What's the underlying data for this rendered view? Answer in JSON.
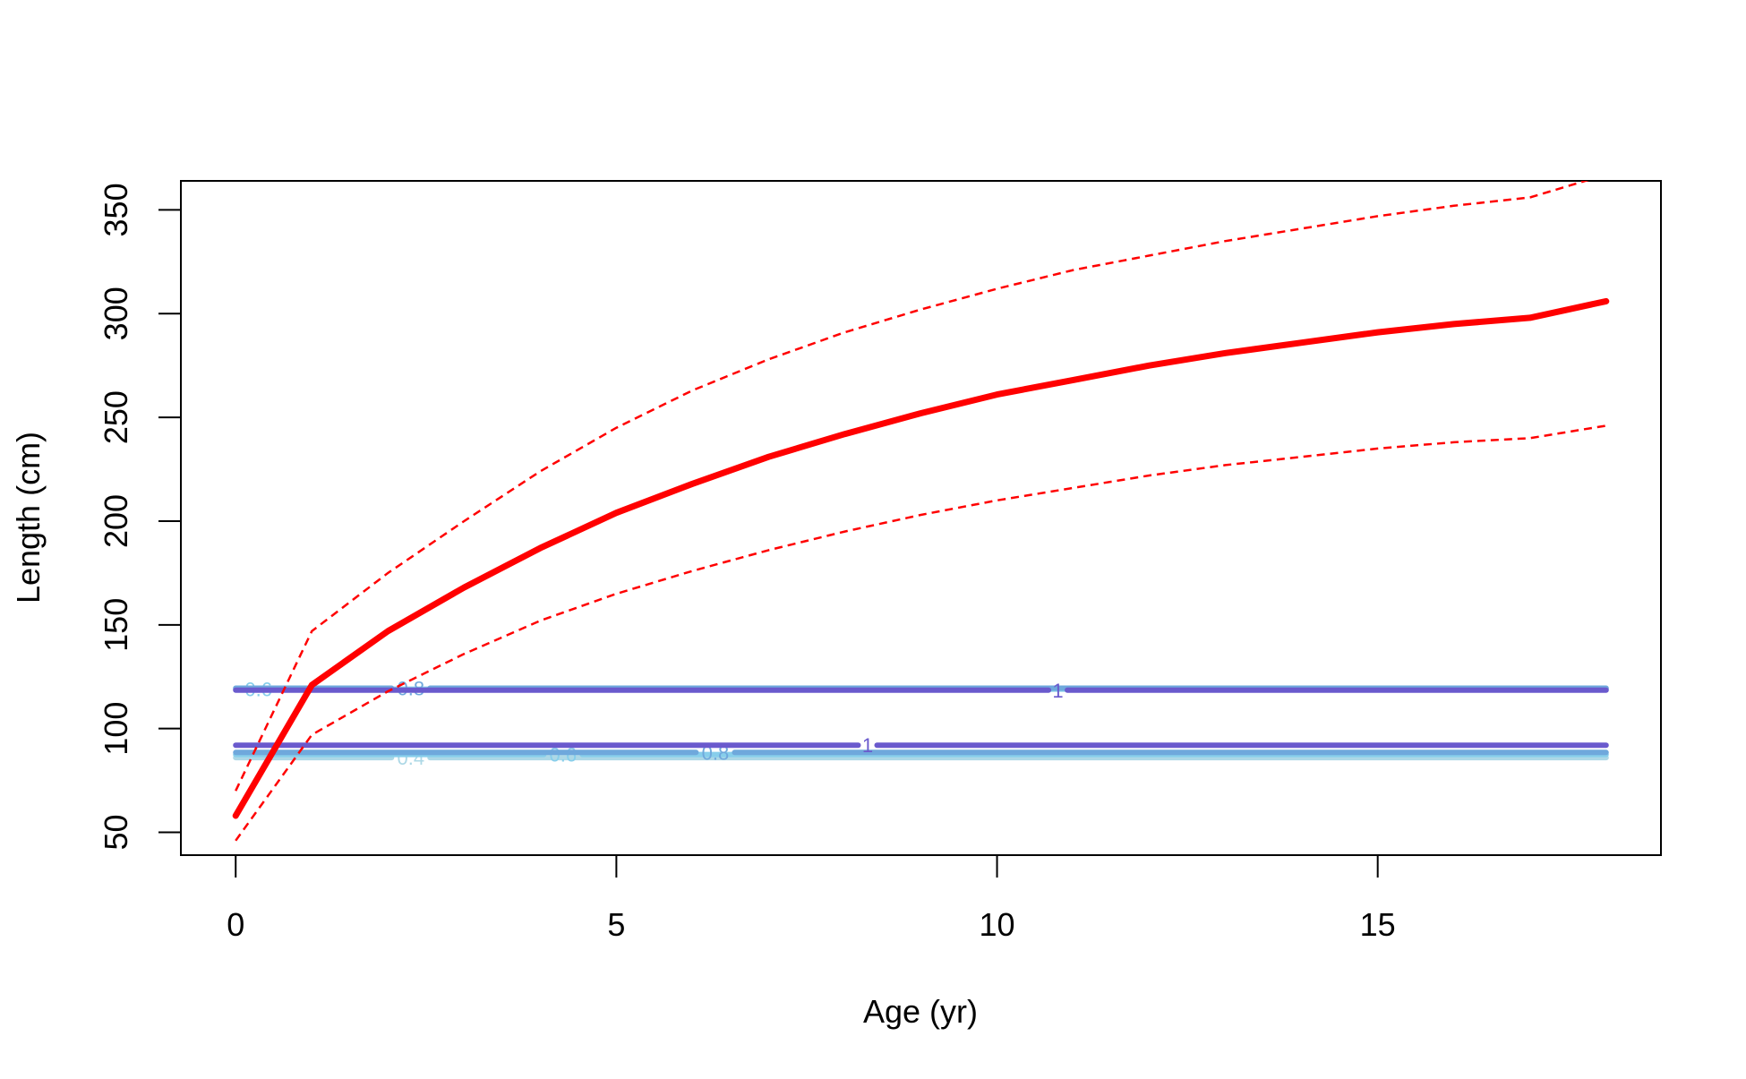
{
  "chart_data": {
    "type": "line",
    "title": "",
    "xlabel": "Age (yr)",
    "ylabel": "Length (cm)",
    "xlim": [
      -0.72,
      18.72
    ],
    "ylim": [
      39,
      364
    ],
    "x_ticks": [
      0,
      5,
      10,
      15
    ],
    "y_ticks": [
      50,
      100,
      150,
      200,
      250,
      300,
      350
    ],
    "grid": false,
    "legend": "none",
    "growth_curve": {
      "color": "#ff0000",
      "x": [
        0,
        1,
        2,
        3,
        4,
        5,
        6,
        7,
        8,
        9,
        10,
        11,
        12,
        13,
        14,
        15,
        16,
        17,
        18
      ],
      "mean": [
        58,
        121,
        147,
        168,
        187,
        204,
        218,
        231,
        242,
        252,
        261,
        268,
        275,
        281,
        286,
        291,
        295,
        298,
        306
      ],
      "upper": [
        70,
        147,
        175,
        200,
        224,
        245,
        263,
        278,
        291,
        302,
        312,
        321,
        328,
        335,
        341,
        347,
        352,
        356,
        367
      ],
      "lower": [
        46,
        97,
        118,
        136,
        152,
        165,
        176,
        186,
        195,
        203,
        210,
        216,
        222,
        227,
        231,
        235,
        238,
        240,
        246
      ]
    },
    "contours": [
      {
        "label": "0.6",
        "color": "#87ceeb",
        "x_range": [
          0,
          18
        ],
        "y": 119,
        "label_x": 0.3
      },
      {
        "label": "0.8",
        "color": "#6fa8dc",
        "x_range": [
          0,
          18
        ],
        "y": 119.5,
        "label_x": 2.3
      },
      {
        "label": "1",
        "color": "#6a5acd",
        "x_range": [
          0,
          18
        ],
        "y": 118.5,
        "label_x": 10.8
      },
      {
        "label": "0.4",
        "color": "#add8e6",
        "x_range": [
          0,
          18
        ],
        "y": 86,
        "label_x": 2.3
      },
      {
        "label": "0.6",
        "color": "#87ceeb",
        "x_range": [
          0,
          18
        ],
        "y": 87.5,
        "label_x": 4.3
      },
      {
        "label": "0.8",
        "color": "#6fa8dc",
        "x_range": [
          0,
          18
        ],
        "y": 88.5,
        "label_x": 6.3
      },
      {
        "label": "1",
        "color": "#6a5acd",
        "x_range": [
          0,
          18
        ],
        "y": 92,
        "label_x": 8.3
      }
    ]
  }
}
